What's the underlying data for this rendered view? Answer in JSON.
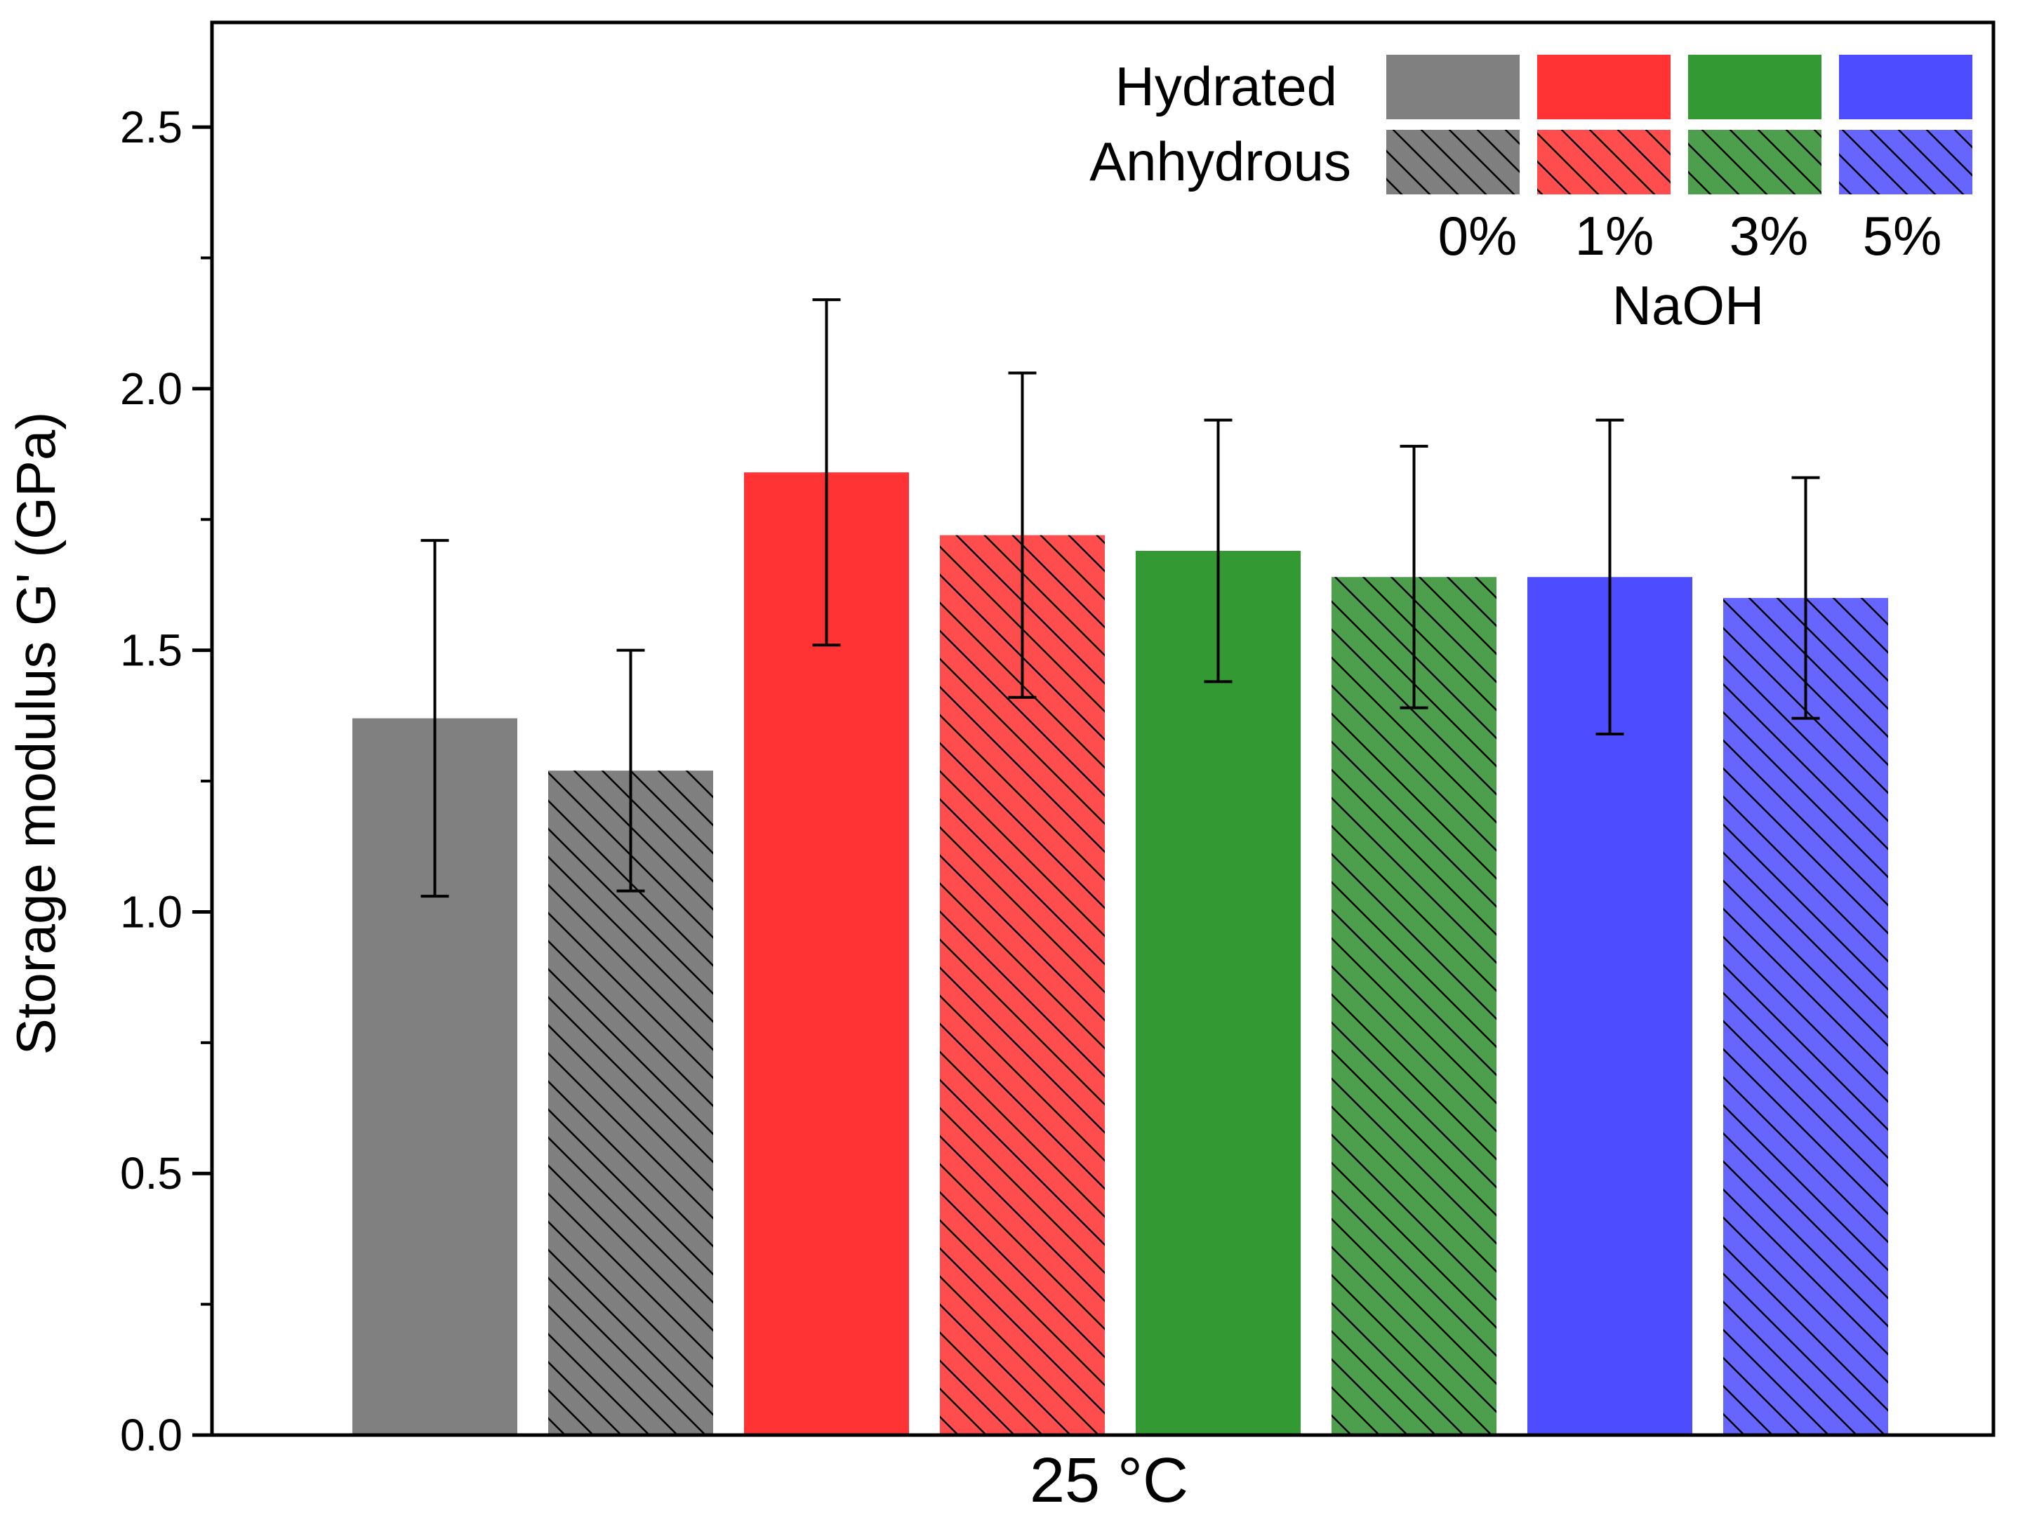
{
  "chart_data": {
    "type": "bar",
    "title": "",
    "xlabel": "25 °C",
    "ylabel": "Storage modulus G' (GPa)",
    "ylim": [
      0,
      2.7
    ],
    "yticks": [
      "0.0",
      "0.5",
      "1.0",
      "1.5",
      "2.0",
      "2.5"
    ],
    "grid": false,
    "legend": {
      "placement": "top-right",
      "rows": [
        "Hydrated",
        "Anhydrous"
      ],
      "columns": [
        "0%",
        "1%",
        "3%",
        "5%"
      ],
      "column_title": "NaOH"
    },
    "colors": {
      "0%": "#808080",
      "1%": "#ff3333",
      "3%": "#339933",
      "5%": "#4d4dff"
    },
    "anhydrous_colors": {
      "0%": "#7f7f7f",
      "1%": "#ff4d4d",
      "3%": "#4d9f4d",
      "5%": "#6666ff"
    },
    "bars": [
      {
        "naoh": "0%",
        "state": "Hydrated",
        "value": 1.37,
        "err_low": 1.03,
        "err_high": 1.71
      },
      {
        "naoh": "0%",
        "state": "Anhydrous",
        "value": 1.27,
        "err_low": 1.04,
        "err_high": 1.5
      },
      {
        "naoh": "1%",
        "state": "Hydrated",
        "value": 1.84,
        "err_low": 1.51,
        "err_high": 2.17
      },
      {
        "naoh": "1%",
        "state": "Anhydrous",
        "value": 1.72,
        "err_low": 1.41,
        "err_high": 2.03
      },
      {
        "naoh": "3%",
        "state": "Hydrated",
        "value": 1.69,
        "err_low": 1.44,
        "err_high": 1.94
      },
      {
        "naoh": "3%",
        "state": "Anhydrous",
        "value": 1.64,
        "err_low": 1.39,
        "err_high": 1.89
      },
      {
        "naoh": "5%",
        "state": "Hydrated",
        "value": 1.64,
        "err_low": 1.34,
        "err_high": 1.94
      },
      {
        "naoh": "5%",
        "state": "Anhydrous",
        "value": 1.6,
        "err_low": 1.37,
        "err_high": 1.83
      }
    ]
  }
}
